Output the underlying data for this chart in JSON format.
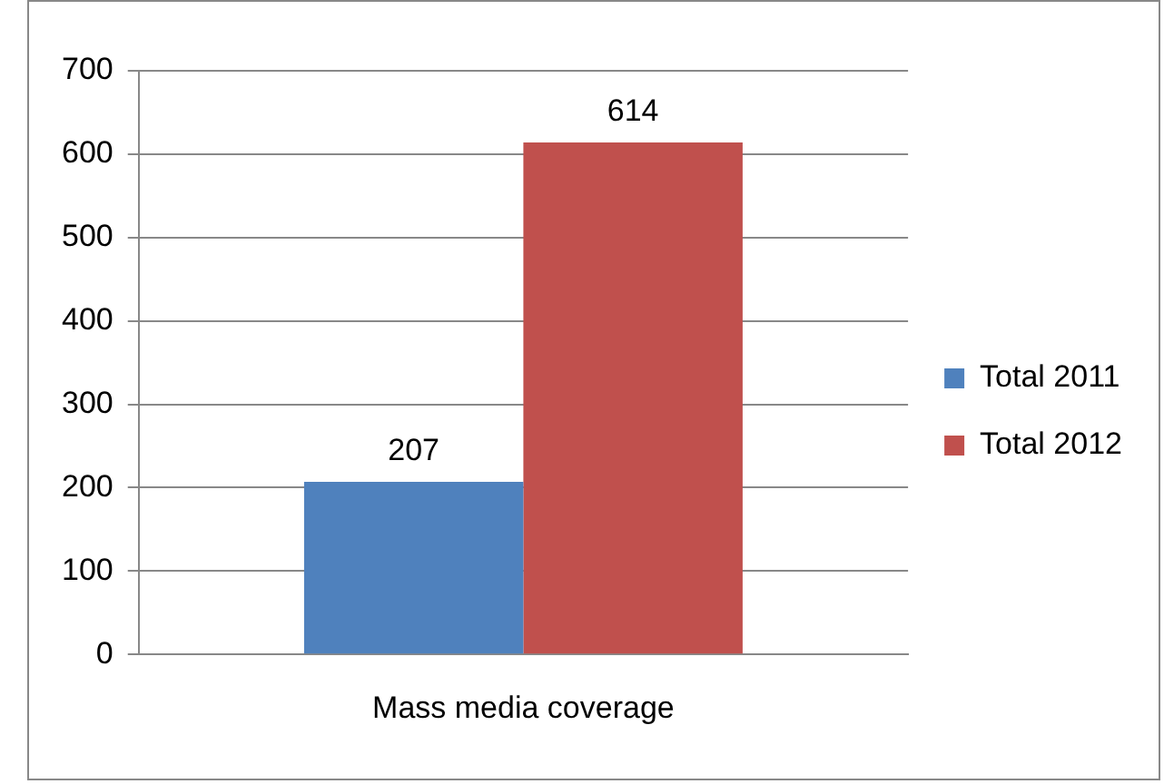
{
  "chart_data": {
    "type": "bar",
    "categories": [
      "Mass media coverage"
    ],
    "series": [
      {
        "name": "Total 2011",
        "color": "#4f81bd",
        "values": [
          207
        ]
      },
      {
        "name": "Total 2012",
        "color": "#c0504d",
        "values": [
          614
        ]
      }
    ],
    "ylim": [
      0,
      700
    ],
    "yticks": [
      0,
      100,
      200,
      300,
      400,
      500,
      600,
      700
    ],
    "grid": "y",
    "legend": "right",
    "data_labels": true
  }
}
